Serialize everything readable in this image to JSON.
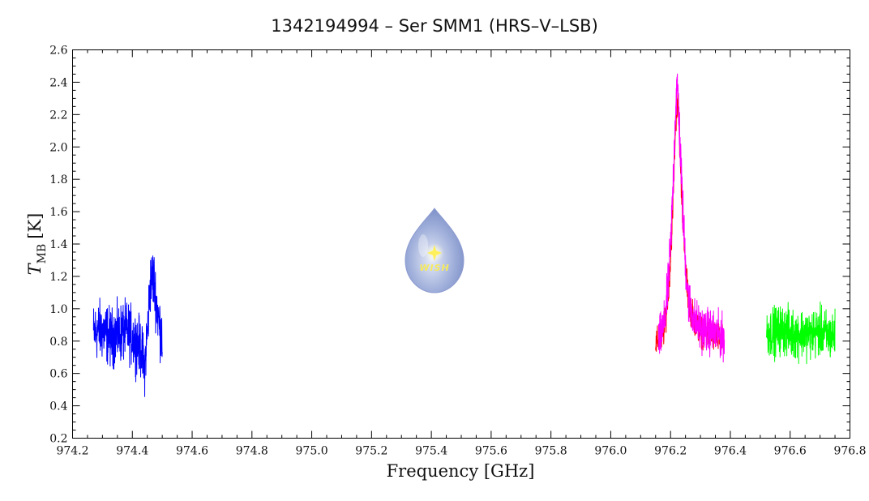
{
  "chart_data": {
    "type": "line",
    "title": "1342194994 – Ser SMM1 (HRS–V–LSB)",
    "xlabel": "Frequency [GHz]",
    "ylabel": {
      "main": "T",
      "subscript": "MB",
      "unit": "[K]"
    },
    "xlim": [
      974.2,
      976.8
    ],
    "ylim": [
      0.2,
      2.6
    ],
    "x_ticks": [
      "974.2",
      "974.4",
      "974.6",
      "974.8",
      "975.0",
      "975.2",
      "975.4",
      "975.6",
      "975.8",
      "976.0",
      "976.2",
      "976.4",
      "976.6",
      "976.8"
    ],
    "y_ticks": [
      "0.2",
      "0.4",
      "0.6",
      "0.8",
      "1.0",
      "1.2",
      "1.4",
      "1.6",
      "1.8",
      "2.0",
      "2.2",
      "2.4",
      "2.6"
    ],
    "grid": false,
    "logo_text": "WISH",
    "series": [
      {
        "color": "#0000ff",
        "x": [
          974.27,
          974.29,
          974.31,
          974.33,
          974.35,
          974.37,
          974.39,
          974.41,
          974.42,
          974.43,
          974.44,
          974.45,
          974.46,
          974.47,
          974.48,
          974.49,
          974.5
        ],
        "y": [
          0.85,
          0.87,
          0.85,
          0.82,
          0.84,
          0.86,
          0.85,
          0.8,
          0.78,
          0.75,
          0.62,
          0.85,
          1.15,
          1.2,
          1.05,
          0.9,
          0.83
        ],
        "noise": 0.12
      },
      {
        "color": "#ff0000",
        "x": [
          976.15,
          976.17,
          976.18,
          976.19,
          976.2,
          976.21,
          976.215,
          976.22,
          976.225,
          976.23,
          976.24,
          976.25,
          976.26,
          976.28,
          976.3,
          976.33,
          976.36,
          976.38
        ],
        "y": [
          0.78,
          0.82,
          0.88,
          1.05,
          1.3,
          1.75,
          2.05,
          2.25,
          2.25,
          2.05,
          1.6,
          1.25,
          1.05,
          0.92,
          0.86,
          0.84,
          0.82,
          0.8
        ],
        "noise": 0.06
      },
      {
        "color": "#ff00ff",
        "x": [
          976.16,
          976.17,
          976.18,
          976.19,
          976.2,
          976.21,
          976.215,
          976.22,
          976.225,
          976.23,
          976.24,
          976.25,
          976.26,
          976.28,
          976.3,
          976.33,
          976.36,
          976.38
        ],
        "y": [
          0.8,
          0.85,
          0.92,
          1.1,
          1.38,
          1.85,
          2.15,
          2.35,
          2.35,
          2.1,
          1.65,
          1.28,
          1.05,
          0.93,
          0.88,
          0.86,
          0.84,
          0.82
        ],
        "noise": 0.09
      },
      {
        "color": "#00ff00",
        "x": [
          976.52,
          976.55,
          976.58,
          976.61,
          976.64,
          976.67,
          976.7,
          976.73,
          976.75
        ],
        "y": [
          0.85,
          0.86,
          0.87,
          0.84,
          0.85,
          0.84,
          0.86,
          0.83,
          0.84
        ],
        "noise": 0.1
      }
    ]
  }
}
